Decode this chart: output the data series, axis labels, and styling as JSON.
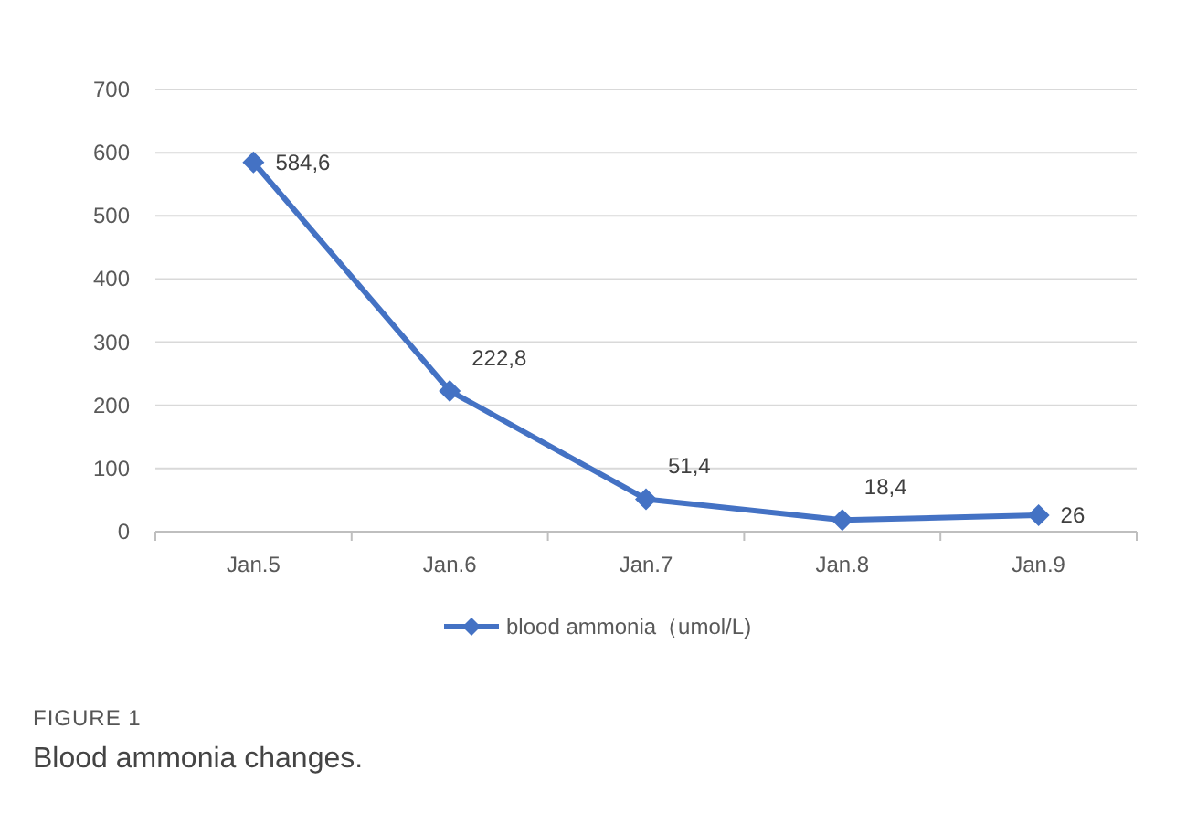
{
  "chart_data": {
    "type": "line",
    "categories": [
      "Jan.5",
      "Jan.6",
      "Jan.7",
      "Jan.8",
      "Jan.9"
    ],
    "series": [
      {
        "name": "blood ammonia（umol/L)",
        "color": "#4472c4",
        "values": [
          584.6,
          222.8,
          51.4,
          18.4,
          26
        ],
        "value_labels": [
          "584,6",
          "222,8",
          "51,4",
          "18,4",
          "26"
        ]
      }
    ],
    "ylim": [
      0,
      700
    ],
    "yticks": [
      0,
      100,
      200,
      300,
      400,
      500,
      600,
      700
    ],
    "grid": "y",
    "legend": "bottom",
    "marker": "diamond",
    "line_style": "solid",
    "annotations": [
      "FIGURE 1",
      "Blood ammonia changes."
    ]
  }
}
